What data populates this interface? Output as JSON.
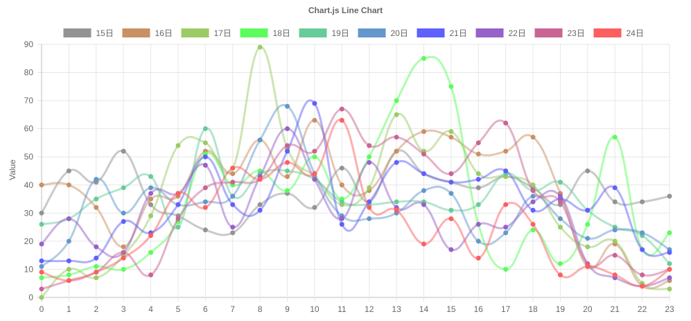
{
  "chart_data": {
    "type": "line",
    "title": "Chart.js Line Chart",
    "xlabel": "",
    "ylabel": "Value",
    "x": [
      "0",
      "1",
      "2",
      "3",
      "4",
      "5",
      "6",
      "7",
      "8",
      "9",
      "10",
      "11",
      "12",
      "13",
      "14",
      "15",
      "16",
      "17",
      "18",
      "19",
      "20",
      "21",
      "22",
      "23"
    ],
    "ylim": [
      0,
      90
    ],
    "ytick_step": 10,
    "grid": true,
    "legend": "top-center",
    "series": [
      {
        "name": "15日",
        "color": "#939393",
        "values": [
          30,
          45,
          41,
          52,
          33,
          29,
          24,
          23,
          33,
          37,
          32,
          46,
          34,
          52,
          44,
          41,
          39,
          43,
          39,
          33,
          45,
          34,
          34,
          36
        ]
      },
      {
        "name": "16日",
        "color": "#c99064",
        "values": [
          40,
          40,
          32,
          18,
          35,
          36,
          52,
          44,
          56,
          43,
          63,
          40,
          38,
          52,
          59,
          57,
          51,
          52,
          57,
          37,
          11,
          19,
          4,
          6
        ]
      },
      {
        "name": "17日",
        "color": "#9ccb65",
        "values": [
          0,
          10,
          7,
          15,
          29,
          54,
          55,
          46,
          89,
          53,
          43,
          33,
          39,
          65,
          52,
          59,
          44,
          43,
          40,
          25,
          18,
          20,
          5,
          3
        ]
      },
      {
        "name": "18日",
        "color": "#5cfc5c",
        "values": [
          7,
          8,
          11,
          10,
          16,
          27,
          51,
          40,
          45,
          38,
          50,
          35,
          50,
          70,
          85,
          75,
          26,
          10,
          24,
          12,
          26,
          57,
          17,
          23
        ]
      },
      {
        "name": "19日",
        "color": "#67cc97",
        "values": [
          26,
          28,
          35,
          39,
          43,
          25,
          60,
          36,
          44,
          45,
          42,
          34,
          33,
          34,
          34,
          31,
          33,
          44,
          38,
          41,
          31,
          25,
          22,
          12
        ]
      },
      {
        "name": "20日",
        "color": "#6497cb",
        "values": [
          11,
          20,
          42,
          30,
          39,
          33,
          34,
          36,
          56,
          68,
          44,
          29,
          28,
          30,
          38,
          37,
          20,
          23,
          36,
          28,
          21,
          24,
          23,
          17
        ]
      },
      {
        "name": "21日",
        "color": "#6060fc",
        "values": [
          13,
          13,
          14,
          27,
          23,
          33,
          50,
          33,
          31,
          52,
          69,
          26,
          34,
          48,
          44,
          41,
          42,
          45,
          31,
          35,
          31,
          39,
          17,
          16
        ]
      },
      {
        "name": "22日",
        "color": "#9661ca",
        "values": [
          19,
          28,
          18,
          16,
          37,
          37,
          47,
          25,
          43,
          60,
          42,
          28,
          48,
          32,
          33,
          17,
          26,
          25,
          34,
          36,
          12,
          7,
          4,
          7
        ]
      },
      {
        "name": "23日",
        "color": "#c96494",
        "values": [
          3,
          6,
          9,
          16,
          8,
          28,
          39,
          41,
          42,
          54,
          52,
          67,
          54,
          57,
          51,
          44,
          55,
          62,
          38,
          34,
          12,
          15,
          8,
          10
        ]
      },
      {
        "name": "24日",
        "color": "#fc5f5f",
        "values": [
          9,
          6,
          9,
          14,
          22,
          37,
          32,
          46,
          42,
          48,
          44,
          63,
          32,
          31,
          19,
          28,
          14,
          33,
          26,
          8,
          11,
          8,
          4,
          10
        ]
      }
    ]
  }
}
